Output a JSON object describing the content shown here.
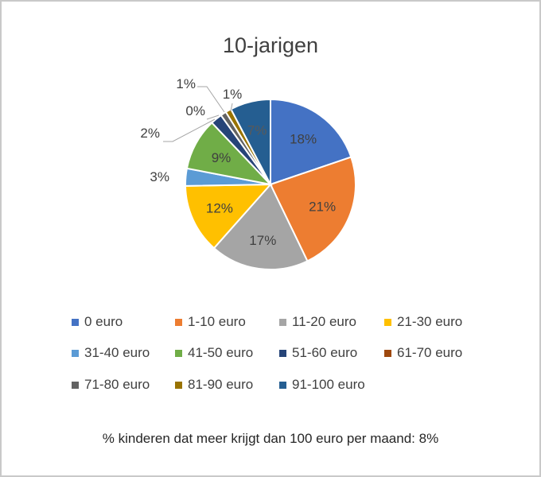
{
  "chart_data": {
    "type": "pie",
    "title": "10-jarigen",
    "legend_position": "bottom",
    "slices": [
      {
        "label": "0 euro",
        "value": 18,
        "value_label": "18%",
        "color": "#4472C4"
      },
      {
        "label": "1-10 euro",
        "value": 21,
        "value_label": "21%",
        "color": "#ED7D31"
      },
      {
        "label": "11-20 euro",
        "value": 17,
        "value_label": "17%",
        "color": "#A5A5A5"
      },
      {
        "label": "21-30 euro",
        "value": 12,
        "value_label": "12%",
        "color": "#FFC000"
      },
      {
        "label": "31-40 euro",
        "value": 3,
        "value_label": "3%",
        "color": "#5B9BD5"
      },
      {
        "label": "41-50 euro",
        "value": 9,
        "value_label": "9%",
        "color": "#70AD47"
      },
      {
        "label": "51-60 euro",
        "value": 2,
        "value_label": "2%",
        "color": "#264478"
      },
      {
        "label": "61-70 euro",
        "value": 0,
        "value_label": "0%",
        "color": "#9E480E"
      },
      {
        "label": "71-80 euro",
        "value": 1,
        "value_label": "1%",
        "color": "#636363"
      },
      {
        "label": "81-90 euro",
        "value": 1,
        "value_label": "1%",
        "color": "#997300"
      },
      {
        "label": "91-100 euro",
        "value": 7,
        "value_label": "7%",
        "color": "#255E91"
      }
    ]
  },
  "footnote": "% kinderen dat meer krijgt dan 100 euro per maand: 8%"
}
